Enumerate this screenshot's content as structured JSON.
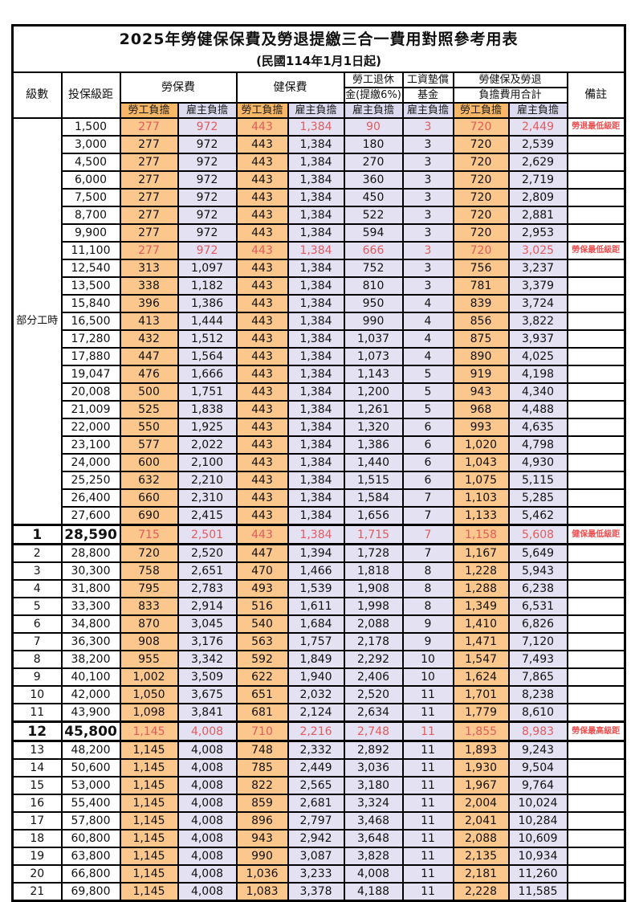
{
  "title": "2025年勞健保保費及勞退提繳三合一費用對照參考用表",
  "subtitle": "(民國114年1月1日起)",
  "colors": {
    "employee_bg": "#FBC78C",
    "employer_bg": "#E3E1F2",
    "employee_header_bg": "#F8B766",
    "employer_header_bg": "#DCDAEE",
    "highlight_text": "#E25B5E",
    "remark_text": "#EF4E4E"
  },
  "header": {
    "level": "級數",
    "bracket": "投保級距",
    "labor_ins": "勞保費",
    "health_ins": "健保費",
    "pension_line1": "勞工退休",
    "pension_line2": "金(提繳6%)",
    "wage_fund_line1": "工資墊償",
    "wage_fund_line2": "基金",
    "total_line1": "勞健保及勞退",
    "total_line2": "負擔費用合計",
    "remark": "備註",
    "employee": "勞工負擔",
    "employer": "雇主負擔"
  },
  "part_time_label": "部分工時",
  "part_time_rowspan": 23,
  "rows": [
    {
      "bracket": "1,500",
      "labor_emp": "277",
      "labor_er": "972",
      "health_emp": "443",
      "health_er": "1,384",
      "pension_er": "90",
      "wage_fund_er": "3",
      "total_emp": "720",
      "total_er": "2,449",
      "remark": "勞退最低級距",
      "red": true
    },
    {
      "bracket": "3,000",
      "labor_emp": "277",
      "labor_er": "972",
      "health_emp": "443",
      "health_er": "1,384",
      "pension_er": "180",
      "wage_fund_er": "3",
      "total_emp": "720",
      "total_er": "2,539",
      "remark": ""
    },
    {
      "bracket": "4,500",
      "labor_emp": "277",
      "labor_er": "972",
      "health_emp": "443",
      "health_er": "1,384",
      "pension_er": "270",
      "wage_fund_er": "3",
      "total_emp": "720",
      "total_er": "2,629",
      "remark": ""
    },
    {
      "bracket": "6,000",
      "labor_emp": "277",
      "labor_er": "972",
      "health_emp": "443",
      "health_er": "1,384",
      "pension_er": "360",
      "wage_fund_er": "3",
      "total_emp": "720",
      "total_er": "2,719",
      "remark": ""
    },
    {
      "bracket": "7,500",
      "labor_emp": "277",
      "labor_er": "972",
      "health_emp": "443",
      "health_er": "1,384",
      "pension_er": "450",
      "wage_fund_er": "3",
      "total_emp": "720",
      "total_er": "2,809",
      "remark": ""
    },
    {
      "bracket": "8,700",
      "labor_emp": "277",
      "labor_er": "972",
      "health_emp": "443",
      "health_er": "1,384",
      "pension_er": "522",
      "wage_fund_er": "3",
      "total_emp": "720",
      "total_er": "2,881",
      "remark": ""
    },
    {
      "bracket": "9,900",
      "labor_emp": "277",
      "labor_er": "972",
      "health_emp": "443",
      "health_er": "1,384",
      "pension_er": "594",
      "wage_fund_er": "3",
      "total_emp": "720",
      "total_er": "2,953",
      "remark": ""
    },
    {
      "bracket": "11,100",
      "labor_emp": "277",
      "labor_er": "972",
      "health_emp": "443",
      "health_er": "1,384",
      "pension_er": "666",
      "wage_fund_er": "3",
      "total_emp": "720",
      "total_er": "3,025",
      "remark": "勞保最低級距",
      "red": true
    },
    {
      "bracket": "12,540",
      "labor_emp": "313",
      "labor_er": "1,097",
      "health_emp": "443",
      "health_er": "1,384",
      "pension_er": "752",
      "wage_fund_er": "3",
      "total_emp": "756",
      "total_er": "3,237",
      "remark": ""
    },
    {
      "bracket": "13,500",
      "labor_emp": "338",
      "labor_er": "1,182",
      "health_emp": "443",
      "health_er": "1,384",
      "pension_er": "810",
      "wage_fund_er": "3",
      "total_emp": "781",
      "total_er": "3,379",
      "remark": ""
    },
    {
      "bracket": "15,840",
      "labor_emp": "396",
      "labor_er": "1,386",
      "health_emp": "443",
      "health_er": "1,384",
      "pension_er": "950",
      "wage_fund_er": "4",
      "total_emp": "839",
      "total_er": "3,724",
      "remark": ""
    },
    {
      "bracket": "16,500",
      "labor_emp": "413",
      "labor_er": "1,444",
      "health_emp": "443",
      "health_er": "1,384",
      "pension_er": "990",
      "wage_fund_er": "4",
      "total_emp": "856",
      "total_er": "3,822",
      "remark": ""
    },
    {
      "bracket": "17,280",
      "labor_emp": "432",
      "labor_er": "1,512",
      "health_emp": "443",
      "health_er": "1,384",
      "pension_er": "1,037",
      "wage_fund_er": "4",
      "total_emp": "875",
      "total_er": "3,937",
      "remark": ""
    },
    {
      "bracket": "17,880",
      "labor_emp": "447",
      "labor_er": "1,564",
      "health_emp": "443",
      "health_er": "1,384",
      "pension_er": "1,073",
      "wage_fund_er": "4",
      "total_emp": "890",
      "total_er": "4,025",
      "remark": ""
    },
    {
      "bracket": "19,047",
      "labor_emp": "476",
      "labor_er": "1,666",
      "health_emp": "443",
      "health_er": "1,384",
      "pension_er": "1,143",
      "wage_fund_er": "5",
      "total_emp": "919",
      "total_er": "4,198",
      "remark": ""
    },
    {
      "bracket": "20,008",
      "labor_emp": "500",
      "labor_er": "1,751",
      "health_emp": "443",
      "health_er": "1,384",
      "pension_er": "1,200",
      "wage_fund_er": "5",
      "total_emp": "943",
      "total_er": "4,340",
      "remark": ""
    },
    {
      "bracket": "21,009",
      "labor_emp": "525",
      "labor_er": "1,838",
      "health_emp": "443",
      "health_er": "1,384",
      "pension_er": "1,261",
      "wage_fund_er": "5",
      "total_emp": "968",
      "total_er": "4,488",
      "remark": ""
    },
    {
      "bracket": "22,000",
      "labor_emp": "550",
      "labor_er": "1,925",
      "health_emp": "443",
      "health_er": "1,384",
      "pension_er": "1,320",
      "wage_fund_er": "6",
      "total_emp": "993",
      "total_er": "4,635",
      "remark": ""
    },
    {
      "bracket": "23,100",
      "labor_emp": "577",
      "labor_er": "2,022",
      "health_emp": "443",
      "health_er": "1,384",
      "pension_er": "1,386",
      "wage_fund_er": "6",
      "total_emp": "1,020",
      "total_er": "4,798",
      "remark": ""
    },
    {
      "bracket": "24,000",
      "labor_emp": "600",
      "labor_er": "2,100",
      "health_emp": "443",
      "health_er": "1,384",
      "pension_er": "1,440",
      "wage_fund_er": "6",
      "total_emp": "1,043",
      "total_er": "4,930",
      "remark": ""
    },
    {
      "bracket": "25,250",
      "labor_emp": "632",
      "labor_er": "2,210",
      "health_emp": "443",
      "health_er": "1,384",
      "pension_er": "1,515",
      "wage_fund_er": "6",
      "total_emp": "1,075",
      "total_er": "5,115",
      "remark": ""
    },
    {
      "bracket": "26,400",
      "labor_emp": "660",
      "labor_er": "2,310",
      "health_emp": "443",
      "health_er": "1,384",
      "pension_er": "1,584",
      "wage_fund_er": "7",
      "total_emp": "1,103",
      "total_er": "5,285",
      "remark": ""
    },
    {
      "bracket": "27,600",
      "labor_emp": "690",
      "labor_er": "2,415",
      "health_emp": "443",
      "health_er": "1,384",
      "pension_er": "1,656",
      "wage_fund_er": "7",
      "total_emp": "1,133",
      "total_er": "5,462",
      "remark": ""
    },
    {
      "level": "1",
      "bracket": "28,590",
      "labor_emp": "715",
      "labor_er": "2,501",
      "health_emp": "443",
      "health_er": "1,384",
      "pension_er": "1,715",
      "wage_fund_er": "7",
      "total_emp": "1,158",
      "total_er": "5,608",
      "remark": "健保最低級距",
      "red": true,
      "strong": true
    },
    {
      "level": "2",
      "bracket": "28,800",
      "labor_emp": "720",
      "labor_er": "2,520",
      "health_emp": "447",
      "health_er": "1,394",
      "pension_er": "1,728",
      "wage_fund_er": "7",
      "total_emp": "1,167",
      "total_er": "5,649",
      "remark": ""
    },
    {
      "level": "3",
      "bracket": "30,300",
      "labor_emp": "758",
      "labor_er": "2,651",
      "health_emp": "470",
      "health_er": "1,466",
      "pension_er": "1,818",
      "wage_fund_er": "8",
      "total_emp": "1,228",
      "total_er": "5,943",
      "remark": ""
    },
    {
      "level": "4",
      "bracket": "31,800",
      "labor_emp": "795",
      "labor_er": "2,783",
      "health_emp": "493",
      "health_er": "1,539",
      "pension_er": "1,908",
      "wage_fund_er": "8",
      "total_emp": "1,288",
      "total_er": "6,238",
      "remark": ""
    },
    {
      "level": "5",
      "bracket": "33,300",
      "labor_emp": "833",
      "labor_er": "2,914",
      "health_emp": "516",
      "health_er": "1,611",
      "pension_er": "1,998",
      "wage_fund_er": "8",
      "total_emp": "1,349",
      "total_er": "6,531",
      "remark": ""
    },
    {
      "level": "6",
      "bracket": "34,800",
      "labor_emp": "870",
      "labor_er": "3,045",
      "health_emp": "540",
      "health_er": "1,684",
      "pension_er": "2,088",
      "wage_fund_er": "9",
      "total_emp": "1,410",
      "total_er": "6,826",
      "remark": ""
    },
    {
      "level": "7",
      "bracket": "36,300",
      "labor_emp": "908",
      "labor_er": "3,176",
      "health_emp": "563",
      "health_er": "1,757",
      "pension_er": "2,178",
      "wage_fund_er": "9",
      "total_emp": "1,471",
      "total_er": "7,120",
      "remark": ""
    },
    {
      "level": "8",
      "bracket": "38,200",
      "labor_emp": "955",
      "labor_er": "3,342",
      "health_emp": "592",
      "health_er": "1,849",
      "pension_er": "2,292",
      "wage_fund_er": "10",
      "total_emp": "1,547",
      "total_er": "7,493",
      "remark": ""
    },
    {
      "level": "9",
      "bracket": "40,100",
      "labor_emp": "1,002",
      "labor_er": "3,509",
      "health_emp": "622",
      "health_er": "1,940",
      "pension_er": "2,406",
      "wage_fund_er": "10",
      "total_emp": "1,624",
      "total_er": "7,865",
      "remark": ""
    },
    {
      "level": "10",
      "bracket": "42,000",
      "labor_emp": "1,050",
      "labor_er": "3,675",
      "health_emp": "651",
      "health_er": "2,032",
      "pension_er": "2,520",
      "wage_fund_er": "11",
      "total_emp": "1,701",
      "total_er": "8,238",
      "remark": ""
    },
    {
      "level": "11",
      "bracket": "43,900",
      "labor_emp": "1,098",
      "labor_er": "3,841",
      "health_emp": "681",
      "health_er": "2,124",
      "pension_er": "2,634",
      "wage_fund_er": "11",
      "total_emp": "1,779",
      "total_er": "8,610",
      "remark": ""
    },
    {
      "level": "12",
      "bracket": "45,800",
      "labor_emp": "1,145",
      "labor_er": "4,008",
      "health_emp": "710",
      "health_er": "2,216",
      "pension_er": "2,748",
      "wage_fund_er": "11",
      "total_emp": "1,855",
      "total_er": "8,983",
      "remark": "勞保最高級距",
      "red": true,
      "strong": true
    },
    {
      "level": "13",
      "bracket": "48,200",
      "labor_emp": "1,145",
      "labor_er": "4,008",
      "health_emp": "748",
      "health_er": "2,332",
      "pension_er": "2,892",
      "wage_fund_er": "11",
      "total_emp": "1,893",
      "total_er": "9,243",
      "remark": ""
    },
    {
      "level": "14",
      "bracket": "50,600",
      "labor_emp": "1,145",
      "labor_er": "4,008",
      "health_emp": "785",
      "health_er": "2,449",
      "pension_er": "3,036",
      "wage_fund_er": "11",
      "total_emp": "1,930",
      "total_er": "9,504",
      "remark": ""
    },
    {
      "level": "15",
      "bracket": "53,000",
      "labor_emp": "1,145",
      "labor_er": "4,008",
      "health_emp": "822",
      "health_er": "2,565",
      "pension_er": "3,180",
      "wage_fund_er": "11",
      "total_emp": "1,967",
      "total_er": "9,764",
      "remark": ""
    },
    {
      "level": "16",
      "bracket": "55,400",
      "labor_emp": "1,145",
      "labor_er": "4,008",
      "health_emp": "859",
      "health_er": "2,681",
      "pension_er": "3,324",
      "wage_fund_er": "11",
      "total_emp": "2,004",
      "total_er": "10,024",
      "remark": ""
    },
    {
      "level": "17",
      "bracket": "57,800",
      "labor_emp": "1,145",
      "labor_er": "4,008",
      "health_emp": "896",
      "health_er": "2,797",
      "pension_er": "3,468",
      "wage_fund_er": "11",
      "total_emp": "2,041",
      "total_er": "10,284",
      "remark": ""
    },
    {
      "level": "18",
      "bracket": "60,800",
      "labor_emp": "1,145",
      "labor_er": "4,008",
      "health_emp": "943",
      "health_er": "2,942",
      "pension_er": "3,648",
      "wage_fund_er": "11",
      "total_emp": "2,088",
      "total_er": "10,609",
      "remark": ""
    },
    {
      "level": "19",
      "bracket": "63,800",
      "labor_emp": "1,145",
      "labor_er": "4,008",
      "health_emp": "990",
      "health_er": "3,087",
      "pension_er": "3,828",
      "wage_fund_er": "11",
      "total_emp": "2,135",
      "total_er": "10,934",
      "remark": ""
    },
    {
      "level": "20",
      "bracket": "66,800",
      "labor_emp": "1,145",
      "labor_er": "4,008",
      "health_emp": "1,036",
      "health_er": "3,233",
      "pension_er": "4,008",
      "wage_fund_er": "11",
      "total_emp": "2,181",
      "total_er": "11,260",
      "remark": ""
    },
    {
      "level": "21",
      "bracket": "69,800",
      "labor_emp": "1,145",
      "labor_er": "4,008",
      "health_emp": "1,083",
      "health_er": "3,378",
      "pension_er": "4,188",
      "wage_fund_er": "11",
      "total_emp": "2,228",
      "total_er": "11,585",
      "remark": ""
    }
  ]
}
